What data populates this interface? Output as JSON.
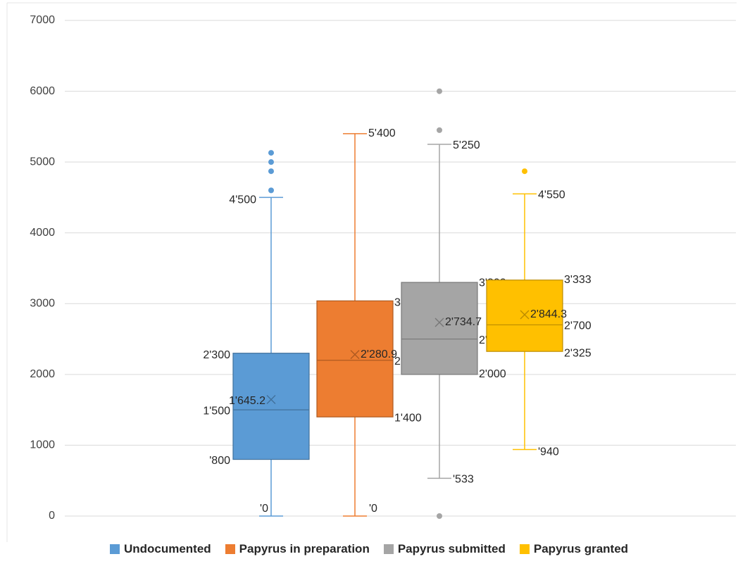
{
  "chart_data": {
    "type": "box",
    "ylim": [
      0,
      7000
    ],
    "y_ticks": [
      "0",
      "1000",
      "2000",
      "3000",
      "4000",
      "5000",
      "6000",
      "7000"
    ],
    "grid": true,
    "legend_position": "bottom",
    "series": [
      {
        "name": "Undocumented",
        "color": "#5B9BD5",
        "min": 0,
        "q1": 800,
        "median": 1500,
        "q3": 2300,
        "max": 4500,
        "mean": 1645.2,
        "outliers": [
          4600,
          4870,
          5000,
          5130
        ],
        "labels": {
          "max": "4'500",
          "q3": "2'300",
          "mean": "1'645.2",
          "median": "1'500",
          "q1": "'800",
          "min": "'0"
        }
      },
      {
        "name": "Papyrus in preparation",
        "color": "#ED7D31",
        "min": 0,
        "q1": 1400,
        "median": 2200,
        "q3": 3039,
        "max": 5400,
        "mean": 2280.9,
        "outliers": [],
        "labels": {
          "max": "5'400",
          "q3": "3'039",
          "mean": "2'280.9",
          "median": "2'200",
          "q1": "1'400",
          "min": "'0"
        }
      },
      {
        "name": "Papyrus submitted",
        "color": "#A5A5A5",
        "min": 533,
        "q1": 2000,
        "median": 2500,
        "q3": 3300,
        "max": 5250,
        "mean": 2734.7,
        "outliers": [
          0,
          5450,
          6000
        ],
        "labels": {
          "max": "5'250",
          "q3": "3'300",
          "mean": "2'734.7",
          "median": "2'500",
          "q1": "2'000",
          "min": "'533"
        }
      },
      {
        "name": "Papyrus granted",
        "color": "#FFC000",
        "min": 940,
        "q1": 2325,
        "median": 2700,
        "q3": 3333,
        "max": 4550,
        "mean": 2844.3,
        "outliers": [
          4870
        ],
        "labels": {
          "max": "4'550",
          "q3": "3'333",
          "mean": "2'844.3",
          "median": "2'700",
          "q1": "2'325",
          "min": "'940"
        }
      }
    ]
  }
}
